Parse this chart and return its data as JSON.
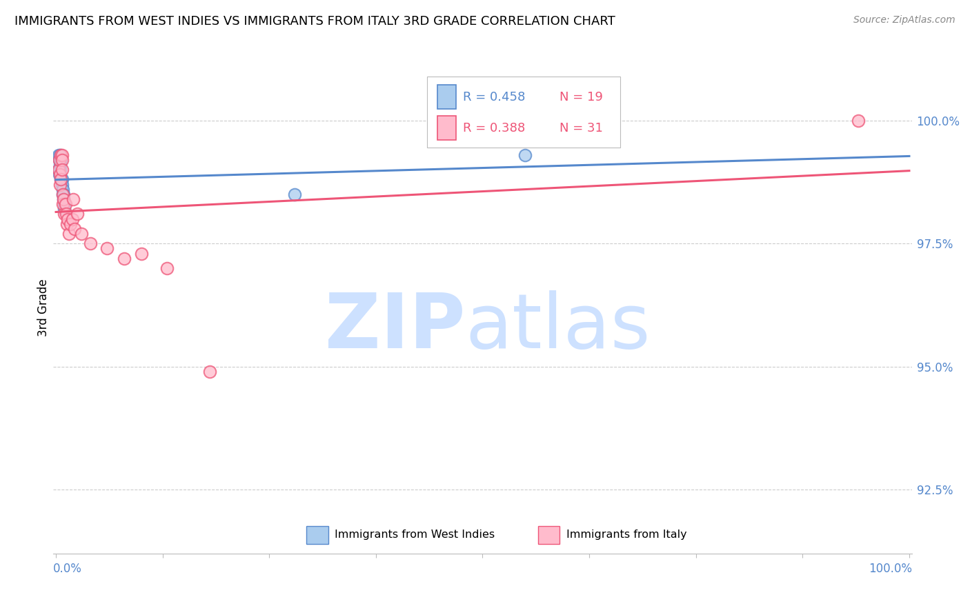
{
  "title": "IMMIGRANTS FROM WEST INDIES VS IMMIGRANTS FROM ITALY 3RD GRADE CORRELATION CHART",
  "source": "Source: ZipAtlas.com",
  "ylabel": "3rd Grade",
  "y_ticks": [
    92.5,
    95.0,
    97.5,
    100.0
  ],
  "y_tick_labels": [
    "92.5%",
    "95.0%",
    "97.5%",
    "100.0%"
  ],
  "ylim": [
    91.2,
    101.2
  ],
  "xlim": [
    -0.003,
    1.003
  ],
  "legend_r_blue": "R = 0.458",
  "legend_n_blue": "N = 19",
  "legend_r_pink": "R = 0.388",
  "legend_n_pink": "N = 31",
  "color_blue": "#5588CC",
  "color_pink": "#EE5577",
  "color_blue_fill": "#AACCEE",
  "color_pink_fill": "#FFBBCC",
  "blue_x": [
    0.003,
    0.003,
    0.004,
    0.004,
    0.005,
    0.005,
    0.005,
    0.006,
    0.006,
    0.007,
    0.007,
    0.008,
    0.008,
    0.009,
    0.009,
    0.01,
    0.01,
    0.28,
    0.55
  ],
  "blue_y": [
    99.3,
    99.0,
    99.2,
    98.9,
    99.3,
    99.1,
    99.0,
    99.2,
    98.8,
    98.8,
    98.7,
    98.6,
    98.5,
    98.5,
    98.4,
    98.3,
    98.2,
    98.5,
    99.3
  ],
  "pink_x": [
    0.003,
    0.004,
    0.005,
    0.005,
    0.006,
    0.006,
    0.007,
    0.007,
    0.007,
    0.008,
    0.008,
    0.009,
    0.01,
    0.011,
    0.012,
    0.013,
    0.014,
    0.015,
    0.017,
    0.019,
    0.02,
    0.022,
    0.025,
    0.03,
    0.04,
    0.06,
    0.08,
    0.1,
    0.13,
    0.18,
    0.94
  ],
  "pink_y": [
    99.0,
    99.2,
    98.9,
    98.7,
    99.3,
    98.8,
    99.3,
    99.2,
    99.0,
    98.5,
    98.3,
    98.4,
    98.1,
    98.3,
    98.1,
    97.9,
    98.0,
    97.7,
    97.9,
    98.0,
    98.4,
    97.8,
    98.1,
    97.7,
    97.5,
    97.4,
    97.2,
    97.3,
    97.0,
    94.9,
    100.0
  ]
}
